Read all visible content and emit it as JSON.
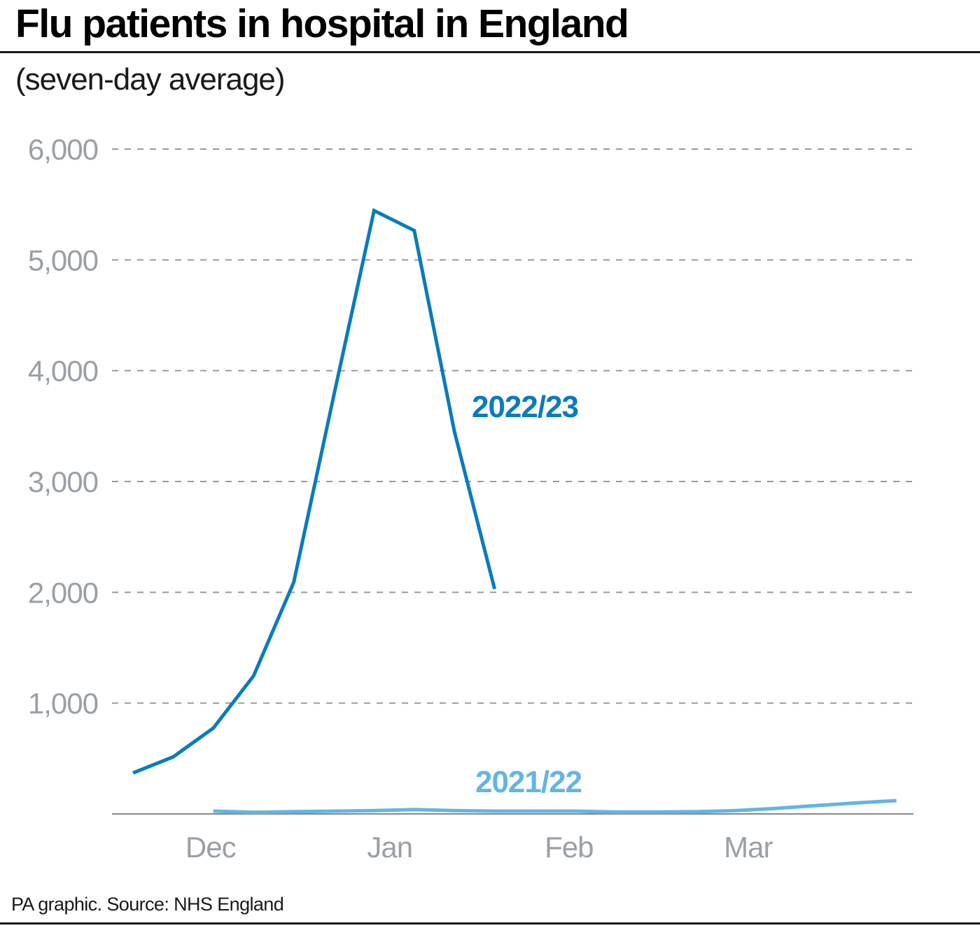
{
  "header": {
    "title": "Flu patients in hospital in England",
    "subtitle": "(seven-day average)"
  },
  "footer": {
    "source": "PA graphic. Source: NHS England"
  },
  "colors": {
    "series_2022_23": "#0a7bbd",
    "series_2021_22": "#63b5e3",
    "tick_label": "#9aa0a6",
    "grid": "#9a9a9a",
    "axis": "#888888"
  },
  "chart_data": {
    "type": "line",
    "title": "Flu patients in hospital in England",
    "subtitle": "(seven-day average)",
    "xlabel": "",
    "ylabel": "",
    "ylim": [
      0,
      6000
    ],
    "y_ticks": [
      1000,
      2000,
      3000,
      4000,
      5000,
      6000
    ],
    "y_tick_labels": [
      "1,000",
      "2,000",
      "3,000",
      "4,000",
      "5,000",
      "6,000"
    ],
    "x_ticks": [
      "Dec",
      "Jan",
      "Feb",
      "Mar"
    ],
    "x_tick_index": [
      1.93,
      6.39,
      10.85,
      15.31
    ],
    "xlim": [
      -0.3,
      19.85
    ],
    "grid": "horizontal-dashed",
    "legend": "inline-labels",
    "series": [
      {
        "name": "2022/23",
        "color": "#0a7bbd",
        "x": [
          0,
          1,
          2,
          3,
          4,
          5,
          6,
          7,
          8,
          9
        ],
        "y": [
          370,
          515,
          775,
          1245,
          2090,
          3780,
          5445,
          5265,
          3450,
          2030
        ]
      },
      {
        "name": "2021/22",
        "color": "#63b5e3",
        "x": [
          2,
          3,
          4,
          5,
          6,
          7,
          8,
          9,
          10,
          11,
          12,
          13,
          14,
          15,
          16,
          17,
          18,
          19
        ],
        "y": [
          25,
          15,
          20,
          25,
          30,
          40,
          30,
          25,
          25,
          25,
          18,
          18,
          20,
          30,
          50,
          75,
          100,
          120
        ]
      }
    ]
  }
}
